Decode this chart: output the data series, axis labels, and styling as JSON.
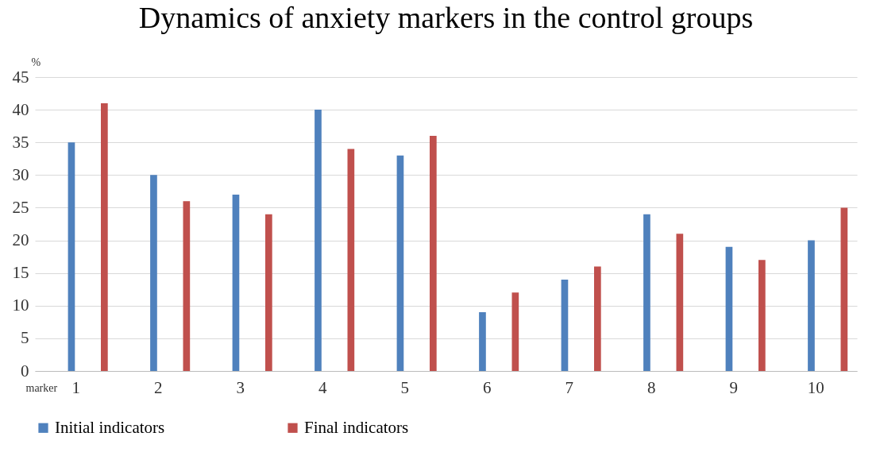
{
  "chart_data": {
    "type": "bar",
    "title": "Dynamics of anxiety markers in the control groups",
    "xlabel": "marker",
    "ylabel": "%",
    "categories": [
      "1",
      "2",
      "3",
      "4",
      "5",
      "6",
      "7",
      "8",
      "9",
      "10"
    ],
    "series": [
      {
        "name": "Initial indicators",
        "color": "#4f81bd",
        "values": [
          35,
          30,
          27,
          40,
          33,
          9,
          14,
          24,
          19,
          20
        ]
      },
      {
        "name": "Final indicators",
        "color": "#c0504d",
        "values": [
          41,
          26,
          24,
          34,
          36,
          12,
          16,
          21,
          17,
          25
        ]
      }
    ],
    "ylim": [
      0,
      45
    ],
    "yticks": [
      0,
      5,
      10,
      15,
      20,
      25,
      30,
      35,
      40,
      45
    ],
    "grid": "y",
    "legend": "bottom"
  }
}
